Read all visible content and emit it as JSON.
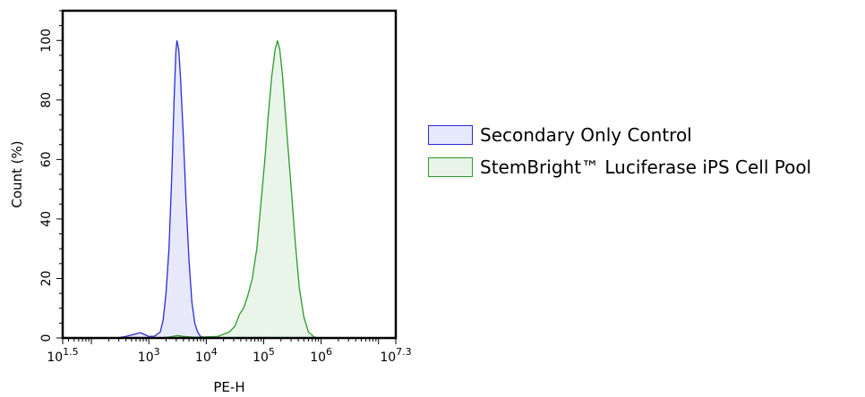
{
  "chart_data": {
    "type": "area",
    "title": "",
    "xlabel": "PE-H",
    "ylabel": "Count (%)",
    "x_scale": "log10",
    "xlim": [
      1.5,
      7.3
    ],
    "ylim": [
      0,
      110
    ],
    "x_ticks": [
      {
        "base": "10",
        "exp": "1.5",
        "value": 1.5
      },
      {
        "base": "10",
        "exp": "3",
        "value": 3
      },
      {
        "base": "10",
        "exp": "4",
        "value": 4
      },
      {
        "base": "10",
        "exp": "5",
        "value": 5
      },
      {
        "base": "10",
        "exp": "6",
        "value": 6
      },
      {
        "base": "10",
        "exp": "7.3",
        "value": 7.3
      }
    ],
    "y_ticks": [
      "0",
      "20",
      "40",
      "60",
      "80",
      "100"
    ],
    "grid": false,
    "legend_position": "right",
    "series": [
      {
        "name": "Secondary Only Control",
        "stroke": "#2b2bd6",
        "fill": "#e6e8fb",
        "points": [
          [
            2.45,
            0
          ],
          [
            2.6,
            0.5
          ],
          [
            2.75,
            1.3
          ],
          [
            2.85,
            1.8
          ],
          [
            2.92,
            1.2
          ],
          [
            3.0,
            0.5
          ],
          [
            3.1,
            0.6
          ],
          [
            3.2,
            2
          ],
          [
            3.25,
            6
          ],
          [
            3.3,
            15
          ],
          [
            3.35,
            30
          ],
          [
            3.4,
            55
          ],
          [
            3.44,
            80
          ],
          [
            3.47,
            96
          ],
          [
            3.49,
            100
          ],
          [
            3.52,
            97
          ],
          [
            3.55,
            88
          ],
          [
            3.6,
            68
          ],
          [
            3.65,
            45
          ],
          [
            3.7,
            26
          ],
          [
            3.75,
            12
          ],
          [
            3.8,
            5
          ],
          [
            3.85,
            2
          ],
          [
            3.9,
            0.5
          ],
          [
            4.0,
            0
          ],
          [
            4.3,
            0
          ],
          [
            5.1,
            0.5
          ],
          [
            5.2,
            0
          ],
          [
            5.8,
            0
          ],
          [
            5.85,
            0.4
          ],
          [
            5.95,
            0
          ]
        ]
      },
      {
        "name": "StemBright™ Luciferase iPS Cell Pool",
        "stroke": "#2a9a2a",
        "fill": "#e8f4e8",
        "points": [
          [
            3.2,
            0
          ],
          [
            3.35,
            0.3
          ],
          [
            3.5,
            0.8
          ],
          [
            3.6,
            0.5
          ],
          [
            3.8,
            0.2
          ],
          [
            4.2,
            0.5
          ],
          [
            4.4,
            2
          ],
          [
            4.5,
            4
          ],
          [
            4.58,
            8
          ],
          [
            4.65,
            10
          ],
          [
            4.72,
            14
          ],
          [
            4.8,
            20
          ],
          [
            4.88,
            30
          ],
          [
            4.95,
            45
          ],
          [
            5.02,
            60
          ],
          [
            5.08,
            75
          ],
          [
            5.14,
            88
          ],
          [
            5.2,
            97
          ],
          [
            5.24,
            100
          ],
          [
            5.28,
            97
          ],
          [
            5.33,
            88
          ],
          [
            5.4,
            70
          ],
          [
            5.48,
            50
          ],
          [
            5.55,
            32
          ],
          [
            5.62,
            17
          ],
          [
            5.7,
            7
          ],
          [
            5.78,
            2
          ],
          [
            5.88,
            0.3
          ],
          [
            5.95,
            0
          ]
        ]
      }
    ]
  },
  "legend": {
    "items": [
      {
        "label": "Secondary Only Control",
        "stroke": "#2b2bd6",
        "fill": "#e6e8fb"
      },
      {
        "label": "StemBright™ Luciferase iPS Cell Pool",
        "stroke": "#2a9a2a",
        "fill": "#e8f4e8"
      }
    ]
  }
}
